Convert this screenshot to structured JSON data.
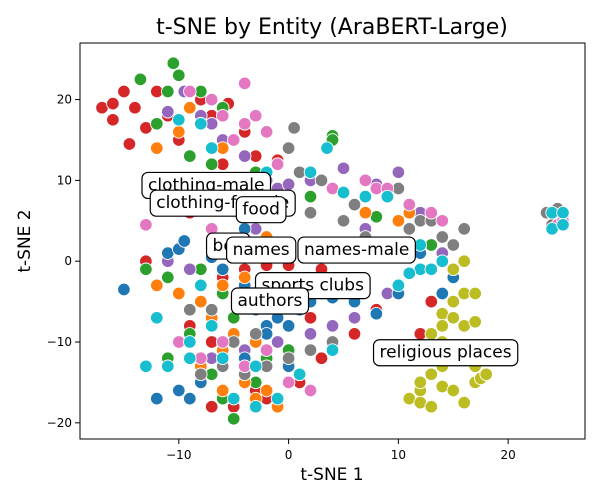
{
  "chart_data": {
    "type": "scatter",
    "title": "t-SNE by Entity (AraBERT-Large)",
    "xlabel": "t-SNE 1",
    "ylabel": "t-SNE 2",
    "xlim": [
      -19,
      27
    ],
    "ylim": [
      -22,
      27
    ],
    "xticks": [
      -10,
      0,
      10,
      20
    ],
    "yticks": [
      -20,
      -10,
      0,
      10,
      20
    ],
    "grid": false,
    "legend": "none",
    "series": [
      {
        "color": "#d62728",
        "points": [
          [
            -17,
            19
          ],
          [
            -16,
            19.5
          ],
          [
            -15,
            21
          ],
          [
            -16,
            17.5
          ],
          [
            -14,
            19
          ],
          [
            -14.5,
            14.5
          ],
          [
            -12,
            21
          ],
          [
            -11,
            18
          ],
          [
            -9,
            21
          ],
          [
            -8,
            20
          ],
          [
            -7,
            18
          ],
          [
            -5.5,
            19.5
          ],
          [
            -4,
            16
          ],
          [
            -13,
            16.5
          ],
          [
            -10,
            15
          ],
          [
            -6,
            12
          ],
          [
            -3,
            13
          ],
          [
            -1,
            12.5
          ],
          [
            -11,
            8
          ],
          [
            -12,
            7
          ],
          [
            -9,
            6
          ],
          [
            -13,
            0
          ],
          [
            -12,
            -3
          ],
          [
            -8,
            -5
          ],
          [
            -6,
            -2
          ],
          [
            -4,
            -1
          ],
          [
            -2,
            -0.5
          ],
          [
            0,
            -0.5
          ],
          [
            1,
            -3
          ],
          [
            3,
            -1
          ],
          [
            -3,
            -16
          ],
          [
            -2,
            -17
          ],
          [
            -5,
            -18
          ],
          [
            -7,
            -18
          ],
          [
            1,
            -15
          ],
          [
            3,
            -12
          ],
          [
            13,
            -5
          ],
          [
            12,
            -9
          ],
          [
            8,
            -6
          ],
          [
            6,
            -9
          ],
          [
            2,
            -7
          ],
          [
            -9,
            -8
          ],
          [
            -7,
            -10
          ]
        ]
      },
      {
        "color": "#2ca02c",
        "points": [
          [
            -10.5,
            24.5
          ],
          [
            -10,
            23
          ],
          [
            -13.5,
            22.5
          ],
          [
            -11,
            21
          ],
          [
            -8,
            21
          ],
          [
            -6,
            19
          ],
          [
            -12,
            17
          ],
          [
            -9,
            13
          ],
          [
            -7,
            12
          ],
          [
            -3,
            11
          ],
          [
            2,
            8
          ],
          [
            4,
            15.5
          ],
          [
            4,
            15
          ],
          [
            8,
            5.5
          ],
          [
            13,
            2
          ],
          [
            -13,
            -1
          ],
          [
            -11,
            -2
          ],
          [
            -8,
            -1
          ],
          [
            -6,
            -4
          ],
          [
            -5,
            -7
          ],
          [
            -11,
            -12
          ],
          [
            -9,
            -9
          ],
          [
            -7,
            -14
          ],
          [
            -6,
            -17
          ],
          [
            -5,
            -19.5
          ],
          [
            -3,
            -15
          ],
          [
            1,
            -14
          ],
          [
            -2,
            -12
          ],
          [
            0,
            -11
          ]
        ]
      },
      {
        "color": "#9467bd",
        "points": [
          [
            -9.5,
            21
          ],
          [
            -11,
            18.5
          ],
          [
            -8,
            18
          ],
          [
            -7,
            17
          ],
          [
            -6,
            15
          ],
          [
            -4,
            13
          ],
          [
            -2,
            10
          ],
          [
            -1,
            9
          ],
          [
            0,
            9.5
          ],
          [
            2,
            10
          ],
          [
            5,
            11.5
          ],
          [
            8,
            9.5
          ],
          [
            -11,
            0
          ],
          [
            -9,
            -1
          ],
          [
            -6,
            1
          ],
          [
            -4,
            2
          ],
          [
            -3,
            4
          ],
          [
            7,
            4
          ],
          [
            9,
            -4
          ],
          [
            10,
            -3
          ],
          [
            -9,
            -10
          ],
          [
            -7,
            -12
          ],
          [
            -4,
            -11
          ],
          [
            -1,
            -10
          ],
          [
            2,
            -9
          ],
          [
            4,
            -8
          ],
          [
            6,
            -7
          ],
          [
            10,
            11
          ],
          [
            12,
            6
          ],
          [
            14,
            1
          ]
        ]
      },
      {
        "color": "#1f77b4",
        "points": [
          [
            -15,
            -3.5
          ],
          [
            -11,
            1
          ],
          [
            -10,
            1.5
          ],
          [
            -9.5,
            2.5
          ],
          [
            -7,
            0.5
          ],
          [
            -6,
            -1
          ],
          [
            -4,
            -3
          ],
          [
            -3,
            -6
          ],
          [
            -2,
            -8
          ],
          [
            -1,
            -7
          ],
          [
            0,
            -8
          ],
          [
            1,
            -6
          ],
          [
            2,
            -5
          ],
          [
            3,
            -4
          ],
          [
            4,
            -4.5
          ],
          [
            6,
            -5
          ],
          [
            8,
            -6.5
          ],
          [
            10,
            -4
          ],
          [
            12,
            1
          ],
          [
            14,
            -4
          ],
          [
            15,
            -2
          ],
          [
            -12,
            -17
          ],
          [
            -10,
            -16
          ],
          [
            -9,
            -17
          ],
          [
            -8,
            -15
          ],
          [
            -6,
            -13
          ],
          [
            -4,
            -12
          ],
          [
            -2,
            -9
          ],
          [
            0,
            -13
          ],
          [
            -2,
            6
          ],
          [
            -4,
            4
          ]
        ]
      },
      {
        "color": "#ff7f0e",
        "points": [
          [
            -12,
            14
          ],
          [
            -10,
            16
          ],
          [
            -9,
            19
          ],
          [
            -8,
            17
          ],
          [
            -6,
            14
          ],
          [
            -4,
            -2
          ],
          [
            -6,
            -3
          ],
          [
            -8,
            -5
          ],
          [
            -10,
            -4
          ],
          [
            -12,
            -3
          ],
          [
            -7,
            -7
          ],
          [
            -5,
            -9
          ],
          [
            -3,
            -10
          ],
          [
            -6,
            -11
          ],
          [
            -8,
            -13
          ],
          [
            -4,
            -15
          ],
          [
            -2,
            -16
          ],
          [
            -6,
            -16
          ],
          [
            -3,
            -17
          ],
          [
            -1,
            -18
          ],
          [
            10,
            5
          ],
          [
            11,
            6
          ],
          [
            7,
            6
          ],
          [
            -2,
            3
          ]
        ]
      },
      {
        "color": "#7f7f7f",
        "points": [
          [
            0.5,
            16.5
          ],
          [
            0,
            14
          ],
          [
            -1,
            12
          ],
          [
            1,
            11
          ],
          [
            3,
            10
          ],
          [
            2,
            6
          ],
          [
            5,
            5
          ],
          [
            6,
            7
          ],
          [
            7,
            3
          ],
          [
            10,
            9
          ],
          [
            11,
            4
          ],
          [
            12,
            5
          ],
          [
            13,
            5
          ],
          [
            14,
            3
          ],
          [
            15,
            2
          ],
          [
            16,
            4
          ],
          [
            23.5,
            6
          ],
          [
            24.5,
            6.5
          ],
          [
            25,
            5.5
          ],
          [
            24,
            4.5
          ],
          [
            -3,
            -9
          ],
          [
            -5,
            -10
          ],
          [
            -6,
            -13
          ],
          [
            -8,
            -14
          ],
          [
            -4,
            -14
          ],
          [
            -2,
            -13
          ],
          [
            0,
            -12
          ],
          [
            2,
            -11
          ],
          [
            4,
            -10
          ],
          [
            -7,
            -6
          ],
          [
            -9,
            -6
          ],
          [
            3,
            1
          ]
        ]
      },
      {
        "color": "#e377c2",
        "points": [
          [
            -4,
            22
          ],
          [
            -9,
            21
          ],
          [
            -7,
            20
          ],
          [
            -6,
            18
          ],
          [
            -5,
            15
          ],
          [
            -4,
            17
          ],
          [
            -3,
            18
          ],
          [
            -2,
            16
          ],
          [
            -1,
            12
          ],
          [
            4,
            9
          ],
          [
            7,
            10
          ],
          [
            8,
            9
          ],
          [
            9,
            9
          ],
          [
            11,
            7
          ],
          [
            13,
            6
          ],
          [
            14,
            5
          ],
          [
            -13,
            4.5
          ],
          [
            -9,
            7
          ],
          [
            -7,
            4
          ],
          [
            -10,
            -10
          ],
          [
            -8,
            -12
          ],
          [
            -6,
            -10
          ],
          [
            -4,
            -13
          ],
          [
            -2,
            -11
          ],
          [
            0,
            -15
          ],
          [
            2,
            -16
          ],
          [
            24.5,
            4.5
          ],
          [
            25,
            5
          ]
        ]
      },
      {
        "color": "#17becf",
        "points": [
          [
            -10,
            17.5
          ],
          [
            -8,
            17
          ],
          [
            -7,
            14
          ],
          [
            -2,
            11
          ],
          [
            2,
            11
          ],
          [
            3.5,
            14
          ],
          [
            5,
            8.5
          ],
          [
            9,
            8
          ],
          [
            7,
            8
          ],
          [
            12,
            -1
          ],
          [
            13,
            -1
          ],
          [
            14,
            0
          ],
          [
            11,
            -1.5
          ],
          [
            10,
            -3
          ],
          [
            12,
            2
          ],
          [
            -9,
            -12
          ],
          [
            -11,
            -13
          ],
          [
            -13,
            -13
          ],
          [
            -7,
            -8
          ],
          [
            -12,
            -7
          ],
          [
            -9,
            -10
          ],
          [
            -5,
            -17
          ],
          [
            -3,
            -18
          ],
          [
            -1,
            -17
          ],
          [
            1,
            -14
          ],
          [
            4,
            -11
          ],
          [
            24,
            4
          ],
          [
            24,
            6
          ],
          [
            25,
            6
          ],
          [
            25,
            4.5
          ],
          [
            -6,
            -12
          ],
          [
            -3,
            -13
          ],
          [
            -8,
            -3
          ]
        ]
      },
      {
        "color": "#bcbd22",
        "points": [
          [
            16,
            0
          ],
          [
            15,
            -1
          ],
          [
            16,
            -4
          ],
          [
            17,
            -4
          ],
          [
            15,
            -5
          ],
          [
            14,
            -6.5
          ],
          [
            15,
            -7
          ],
          [
            16,
            -8
          ],
          [
            17,
            -7.5
          ],
          [
            14,
            -8
          ],
          [
            13,
            -9
          ],
          [
            14,
            -10
          ],
          [
            15,
            -11
          ],
          [
            16,
            -12
          ],
          [
            17,
            -13
          ],
          [
            14,
            -13
          ],
          [
            13,
            -14
          ],
          [
            12,
            -16
          ],
          [
            11,
            -17
          ],
          [
            12,
            -17.5
          ],
          [
            13,
            -18
          ],
          [
            14,
            -15.5
          ],
          [
            15,
            -16
          ],
          [
            16,
            -17.5
          ],
          [
            17,
            -15
          ],
          [
            17.5,
            -14.5
          ],
          [
            18,
            -14
          ],
          [
            12,
            -15
          ]
        ]
      }
    ],
    "annotations": [
      {
        "text": "clothing-male",
        "x": -7.5,
        "y": 9.5
      },
      {
        "text": "clothing-female",
        "x": -6,
        "y": 7.3
      },
      {
        "text": "food",
        "x": -2.5,
        "y": 6.5
      },
      {
        "text": "bev",
        "x": -5.5,
        "y": 2
      },
      {
        "text": "names",
        "x": -2.5,
        "y": 1.5
      },
      {
        "text": "names-male",
        "x": 6.2,
        "y": 1.5
      },
      {
        "text": "sports clubs",
        "x": 2.2,
        "y": -2.9
      },
      {
        "text": "authors",
        "x": -1.7,
        "y": -4.8
      },
      {
        "text": "religious places",
        "x": 14.3,
        "y": -11.2
      }
    ]
  }
}
